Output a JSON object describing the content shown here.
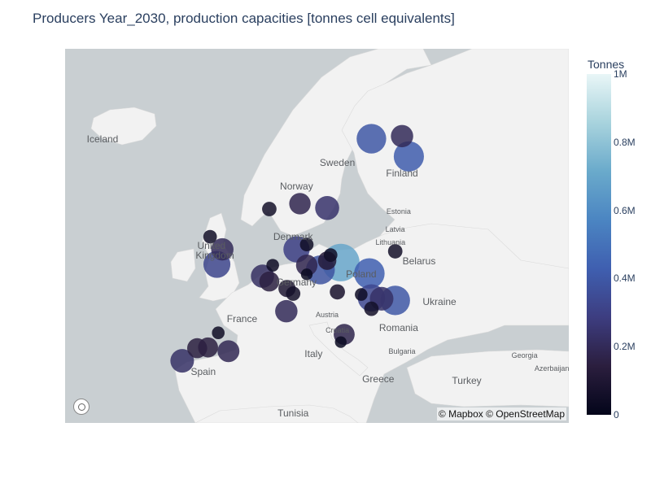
{
  "title": "Producers Year_2030, production capacities [tonnes cell equivalents]",
  "map": {
    "attribution": "© Mapbox © OpenStreetMap",
    "logo_icon": "mapbox-logo-icon",
    "colors": {
      "water": "#c9cfd2",
      "land": "#f2f2f2"
    },
    "places": [
      {
        "name": "Iceland",
        "lon": -18.5,
        "lat": 64.9,
        "kind": "big"
      },
      {
        "name": "Sweden",
        "lon": 16.0,
        "lat": 63.0,
        "kind": "big"
      },
      {
        "name": "Finland",
        "lon": 25.5,
        "lat": 62.1,
        "kind": "big"
      },
      {
        "name": "Norway",
        "lon": 10.0,
        "lat": 61.0,
        "kind": "big"
      },
      {
        "name": "Estonia",
        "lon": 25.0,
        "lat": 58.7,
        "kind": "small"
      },
      {
        "name": "Latvia",
        "lon": 24.5,
        "lat": 56.9,
        "kind": "small"
      },
      {
        "name": "Lithuania",
        "lon": 23.8,
        "lat": 55.6,
        "kind": "small"
      },
      {
        "name": "Denmark",
        "lon": 9.5,
        "lat": 56.2,
        "kind": "big"
      },
      {
        "name": "Belarus",
        "lon": 28.0,
        "lat": 53.7,
        "kind": "big"
      },
      {
        "name": "United",
        "lon": -2.5,
        "lat": 55.3,
        "kind": "big"
      },
      {
        "name": "Kingdom",
        "lon": -2.0,
        "lat": 54.3,
        "kind": "big"
      },
      {
        "name": "Poland",
        "lon": 19.5,
        "lat": 52.2,
        "kind": "big"
      },
      {
        "name": "Germany",
        "lon": 10.0,
        "lat": 51.3,
        "kind": "big"
      },
      {
        "name": "Ukraine",
        "lon": 31.0,
        "lat": 49.0,
        "kind": "big"
      },
      {
        "name": "France",
        "lon": 2.0,
        "lat": 47.0,
        "kind": "big"
      },
      {
        "name": "Austria",
        "lon": 14.5,
        "lat": 47.5,
        "kind": "small"
      },
      {
        "name": "Romania",
        "lon": 25.0,
        "lat": 45.8,
        "kind": "big"
      },
      {
        "name": "Croatia",
        "lon": 16.0,
        "lat": 45.5,
        "kind": "small"
      },
      {
        "name": "Italy",
        "lon": 12.5,
        "lat": 42.5,
        "kind": "big"
      },
      {
        "name": "Bulgaria",
        "lon": 25.5,
        "lat": 42.8,
        "kind": "small"
      },
      {
        "name": "Georgia",
        "lon": 43.5,
        "lat": 42.2,
        "kind": "small"
      },
      {
        "name": "Spain",
        "lon": -3.7,
        "lat": 40.0,
        "kind": "big"
      },
      {
        "name": "Azerbaijan",
        "lon": 47.5,
        "lat": 40.5,
        "kind": "small"
      },
      {
        "name": "Greece",
        "lon": 22.0,
        "lat": 39.0,
        "kind": "big"
      },
      {
        "name": "Turkey",
        "lon": 35.0,
        "lat": 38.8,
        "kind": "big"
      },
      {
        "name": "Tunisia",
        "lon": 9.5,
        "lat": 34.0,
        "kind": "big"
      }
    ]
  },
  "colorbar": {
    "title": "Tonnes",
    "min": 0,
    "max": 1000000,
    "colorscale": [
      "#03051a",
      "#2b1e3e",
      "#3d3d80",
      "#3f5fb0",
      "#4b85c2",
      "#6aaacb",
      "#a8d3dd",
      "#e9f6f7"
    ],
    "ticks": [
      {
        "value": 0,
        "label": "0"
      },
      {
        "value": 200000,
        "label": "0.2M"
      },
      {
        "value": 400000,
        "label": "0.4M"
      },
      {
        "value": 600000,
        "label": "0.6M"
      },
      {
        "value": 800000,
        "label": "0.8M"
      },
      {
        "value": 1000000,
        "label": "1M"
      }
    ]
  },
  "producers": [
    {
      "lon": 21.0,
      "lat": 64.9,
      "tonnes": 400000
    },
    {
      "lon": 25.5,
      "lat": 65.1,
      "tonnes": 200000
    },
    {
      "lon": 26.5,
      "lat": 63.5,
      "tonnes": 420000
    },
    {
      "lon": 6.0,
      "lat": 58.9,
      "tonnes": 60000
    },
    {
      "lon": 10.5,
      "lat": 59.4,
      "tonnes": 180000
    },
    {
      "lon": 14.5,
      "lat": 59.0,
      "tonnes": 240000
    },
    {
      "lon": 24.5,
      "lat": 54.7,
      "tonnes": 60000
    },
    {
      "lon": -2.7,
      "lat": 56.2,
      "tonnes": 50000
    },
    {
      "lon": 11.5,
      "lat": 55.4,
      "tonnes": 50000
    },
    {
      "lon": -0.9,
      "lat": 54.9,
      "tonnes": 200000
    },
    {
      "lon": -1.7,
      "lat": 53.3,
      "tonnes": 320000
    },
    {
      "lon": 10.0,
      "lat": 54.9,
      "tonnes": 300000
    },
    {
      "lon": 15.0,
      "lat": 54.3,
      "tonnes": 50000
    },
    {
      "lon": 16.5,
      "lat": 53.5,
      "tonnes": 700000
    },
    {
      "lon": 14.5,
      "lat": 53.7,
      "tonnes": 120000
    },
    {
      "lon": 6.5,
      "lat": 53.2,
      "tonnes": 40000
    },
    {
      "lon": 11.5,
      "lat": 53.2,
      "tonnes": 180000
    },
    {
      "lon": 13.5,
      "lat": 52.7,
      "tonnes": 380000
    },
    {
      "lon": 20.7,
      "lat": 52.3,
      "tonnes": 430000
    },
    {
      "lon": 5.0,
      "lat": 52.0,
      "tonnes": 220000
    },
    {
      "lon": 6.0,
      "lat": 51.4,
      "tonnes": 150000
    },
    {
      "lon": 8.6,
      "lat": 50.6,
      "tonnes": 100000
    },
    {
      "lon": 11.5,
      "lat": 52.2,
      "tonnes": 30000
    },
    {
      "lon": 9.5,
      "lat": 50.0,
      "tonnes": 60000
    },
    {
      "lon": 16.0,
      "lat": 50.2,
      "tonnes": 70000
    },
    {
      "lon": 19.5,
      "lat": 49.9,
      "tonnes": 40000
    },
    {
      "lon": 21.0,
      "lat": 49.5,
      "tonnes": 330000
    },
    {
      "lon": 22.5,
      "lat": 49.4,
      "tonnes": 230000
    },
    {
      "lon": 24.5,
      "lat": 49.2,
      "tonnes": 400000
    },
    {
      "lon": 8.5,
      "lat": 47.9,
      "tonnes": 200000
    },
    {
      "lon": 21.0,
      "lat": 48.2,
      "tonnes": 60000
    },
    {
      "lon": 17.0,
      "lat": 45.0,
      "tonnes": 170000
    },
    {
      "lon": 16.5,
      "lat": 44.0,
      "tonnes": 30000
    },
    {
      "lon": -1.5,
      "lat": 45.2,
      "tonnes": 40000
    },
    {
      "lon": -3.0,
      "lat": 43.3,
      "tonnes": 150000
    },
    {
      "lon": -4.6,
      "lat": 43.2,
      "tonnes": 150000
    },
    {
      "lon": 0.0,
      "lat": 42.8,
      "tonnes": 190000
    },
    {
      "lon": -6.8,
      "lat": 41.5,
      "tonnes": 230000
    }
  ]
}
